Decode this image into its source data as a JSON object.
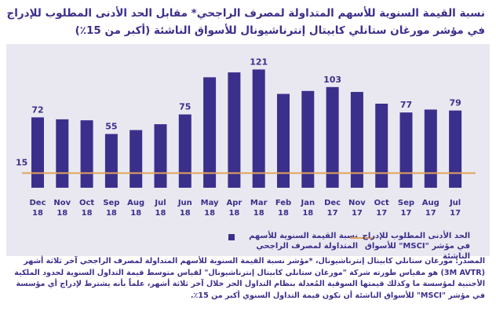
{
  "title_line1": "نسبة القيمة السنوية للأسهم المتداولة لمصرف الراجحي* مقابل الحد الأدنى المطلوب للإدراج",
  "title_line2": "في مؤشر مورغان ستانلي كابيتال إنترناشيونال للأسواق الناشئة (أكبر من 15٪)",
  "legend": {
    "bars": "نسبة القيمة السنوية للأسهم المتداولة لمصرف الراجحي",
    "line": "الحد الأدنى المطلوب للإدراج في مؤشر \"MSCI\" للأسواق الناشئة"
  },
  "source": "المصدر: مورغان ستانلي كابيتال إنترناشيونال، *مؤشر نسبة القيمة السنوية للأسهم المتداولة لمصرف الراجحي آخر ثلاثة أشهر (3M AVTR) هو مقياس طورته شركة \"مورغان ستانلي كابيتال إنترناشيونال\" لقياس متوسط قيمة التداول السنوية لحدود الملكية الأجنبية لمؤسسة ما وكذلك قيمتها السوقية المُعدلة بنظام التداول الحر خلال آخر ثلاثة أشهر، علماً بأنه يشترط لإدراج أي مؤسسة في مؤشر \"MSCI\" للأسواق الناشئة أن تكون قيمة التداول السنوي أكبر من 15٪.",
  "colors": {
    "bar": "#3b2f8c",
    "threshold": "#e0a45a",
    "panel": "#e9e8f1",
    "text": "#3b2f8c"
  },
  "chart_data": {
    "type": "bar",
    "categories": [
      "Dec 18",
      "Nov 18",
      "Oct 18",
      "Sep 18",
      "Aug 18",
      "Jul 18",
      "Jun 18",
      "May 18",
      "Apr 18",
      "Mar 18",
      "Feb 18",
      "Jan 18",
      "Dec 17",
      "Nov 17",
      "Oct 17",
      "Sep 17",
      "Aug 17",
      "Jul 17"
    ],
    "values": [
      72,
      70,
      69,
      55,
      59,
      65,
      75,
      113,
      118,
      121,
      96,
      99,
      103,
      98,
      86,
      77,
      80,
      79
    ],
    "data_labels": [
      {
        "category": "Dec 18",
        "label": "72"
      },
      {
        "category": "Sep 18",
        "label": "55"
      },
      {
        "category": "Jun 18",
        "label": "75"
      },
      {
        "category": "Mar 18",
        "label": "121"
      },
      {
        "category": "Dec 17",
        "label": "103"
      },
      {
        "category": "Sep 17",
        "label": "77"
      },
      {
        "category": "Jul 17",
        "label": "79"
      }
    ],
    "threshold": {
      "value": 15,
      "label": "15"
    },
    "ylim": [
      0,
      135
    ],
    "grid": false,
    "legend_position": "bottom"
  }
}
